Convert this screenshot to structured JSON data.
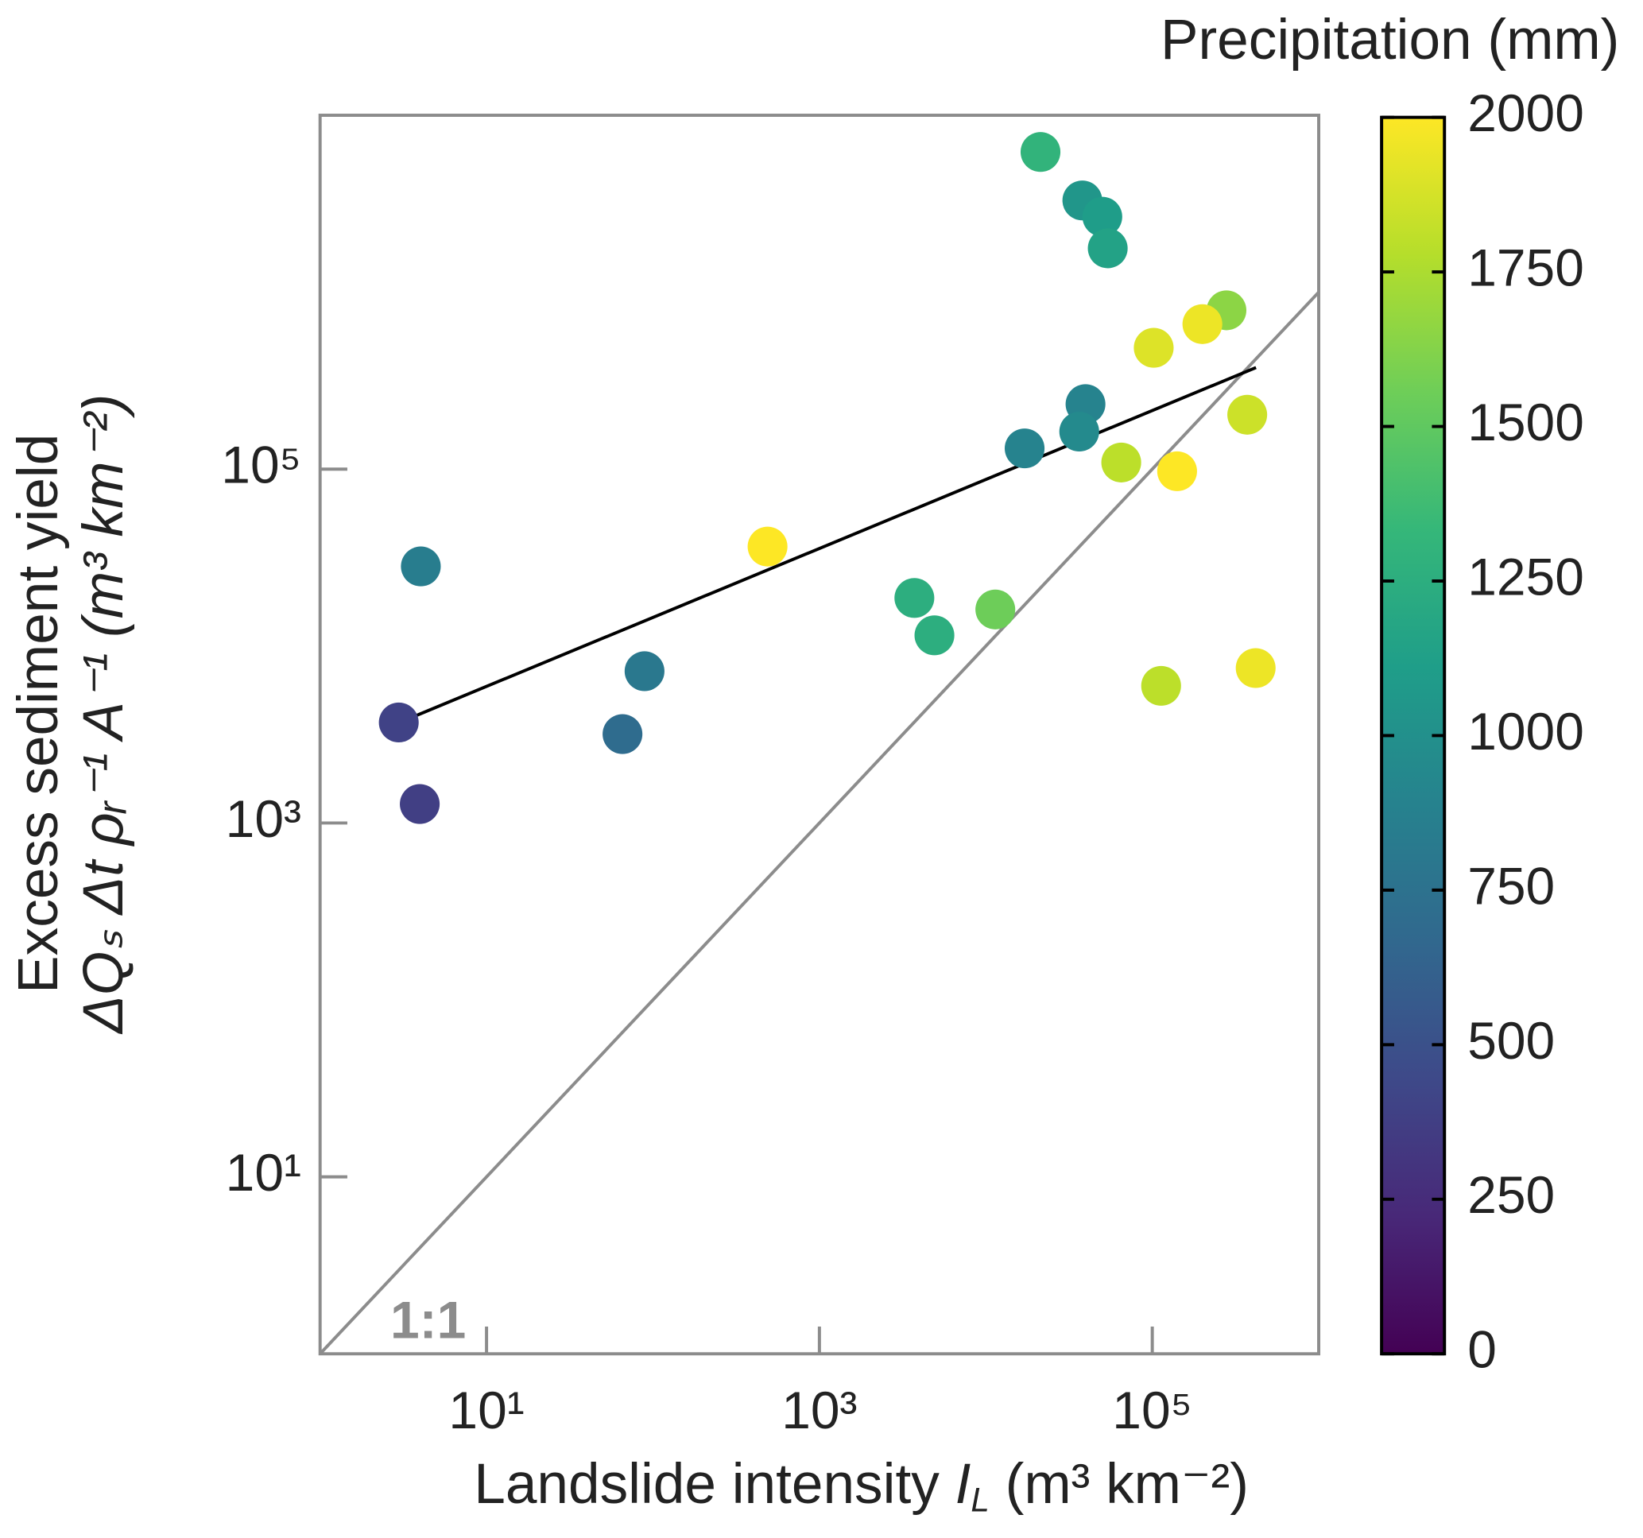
{
  "chart_data": {
    "type": "scatter",
    "x_label": [
      "Landslide intensity ",
      "I",
      "L",
      " (m³ km⁻²)"
    ],
    "y_label": [
      "Excess sediment yield",
      "ΔQₛ Δt ρᵣ⁻¹ A⁻¹ (m³ km⁻²)"
    ],
    "x_scale": "log",
    "y_scale": "log",
    "xlim": [
      1,
      1000000
    ],
    "ylim": [
      1,
      10000000
    ],
    "xticks": [
      {
        "value": 10,
        "label": "10¹"
      },
      {
        "value": 1000,
        "label": "10³"
      },
      {
        "value": 100000,
        "label": "10⁵"
      }
    ],
    "yticks": [
      {
        "value": 10,
        "label": "10¹"
      },
      {
        "value": 1000,
        "label": "10³"
      },
      {
        "value": 100000,
        "label": "10⁵"
      }
    ],
    "x": [
      21300,
      38000,
      50100,
      54000,
      279000,
      200000,
      102000,
      39700,
      372000,
      36400,
      17100,
      65100,
      141000,
      488,
      4.03,
      3720,
      11400,
      4910,
      418000,
      89,
      113000,
      2.97,
      65.6,
      3.97
    ],
    "y": [
      6200000,
      3300000,
      2670000,
      1770000,
      790000,
      660000,
      485000,
      233000,
      203000,
      163000,
      131000,
      109000,
      97300,
      36500,
      28200,
      18700,
      16100,
      11500,
      7510,
      7210,
      5960,
      3700,
      3180,
      1280
    ],
    "c": [
      1300,
      1050,
      1100,
      1150,
      1650,
      1950,
      1900,
      900,
      1850,
      950,
      900,
      1800,
      2000,
      2000,
      850,
      1250,
      1550,
      1250,
      1950,
      800,
      1800,
      400,
      700,
      380
    ],
    "colormap": "viridis",
    "colorbar_label": "Precipitation (mm)",
    "clim": [
      0,
      2000
    ],
    "cticks": [
      0,
      250,
      500,
      750,
      1000,
      1250,
      1500,
      1750,
      2000
    ],
    "fit_line": {
      "x": [
        3,
        420000
      ],
      "y": [
        3700,
        375000
      ],
      "color": "#000000"
    },
    "reference_line": {
      "label": "1:1",
      "x": [
        1,
        1000000
      ],
      "y": [
        1,
        1000000
      ],
      "color": "#8c8c8c"
    }
  }
}
